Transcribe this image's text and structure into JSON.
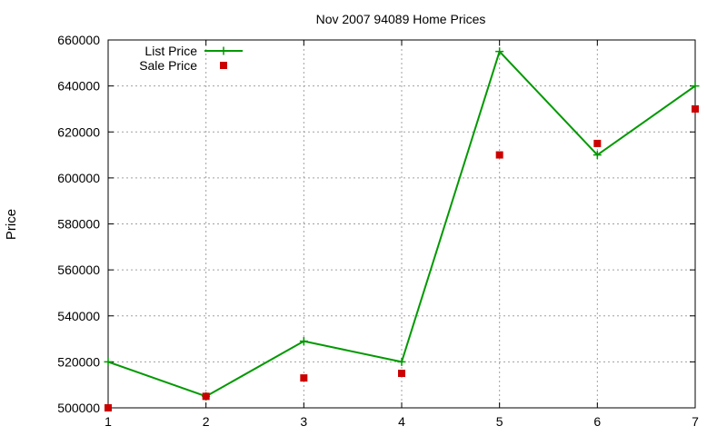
{
  "chart_data": {
    "type": "line",
    "title": "Nov 2007 94089 Home Prices",
    "xlabel": "",
    "ylabel": "Price",
    "x": [
      1,
      2,
      3,
      4,
      5,
      6,
      7
    ],
    "xlim": [
      1,
      7
    ],
    "ylim": [
      500000,
      660000
    ],
    "xticks": [
      "1",
      "2",
      "3",
      "4",
      "5",
      "6",
      "7"
    ],
    "yticks": [
      "500000",
      "520000",
      "540000",
      "560000",
      "580000",
      "600000",
      "620000",
      "640000",
      "660000"
    ],
    "grid": true,
    "legend_position": "top-left",
    "series": [
      {
        "name": "List Price",
        "style": "line-with-plus-markers",
        "color": "#009900",
        "values": [
          520000,
          505000,
          529000,
          520000,
          655000,
          610000,
          640000
        ]
      },
      {
        "name": "Sale Price",
        "style": "square-markers",
        "color": "#cc0000",
        "values": [
          500000,
          505000,
          513000,
          515000,
          610000,
          615000,
          630000
        ]
      }
    ]
  }
}
